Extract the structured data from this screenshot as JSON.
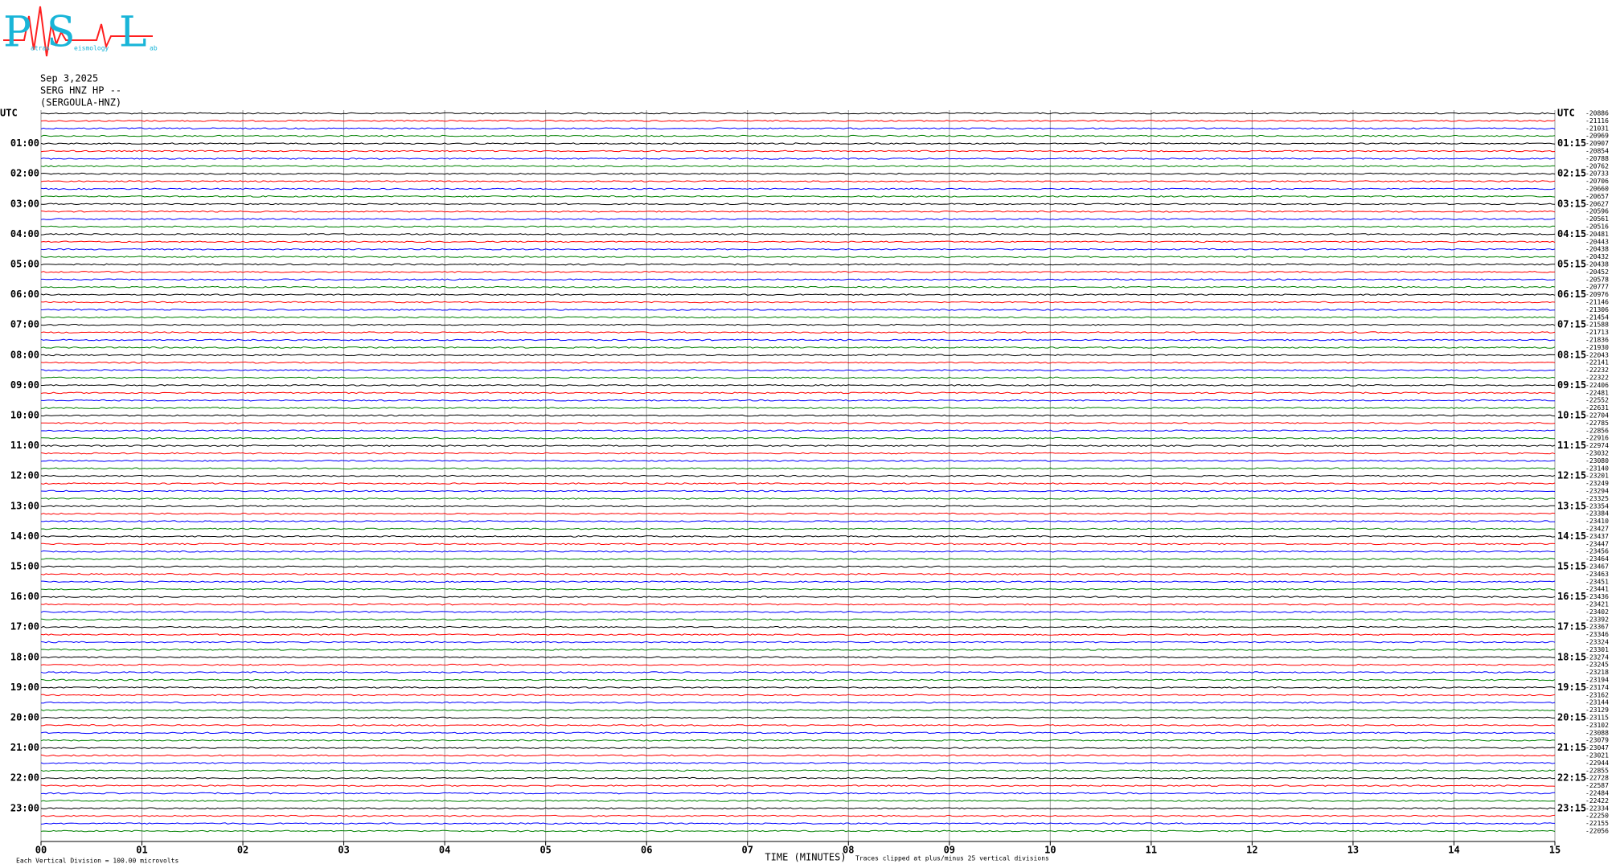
{
  "header": {
    "logo": {
      "letters": [
        "P",
        "S",
        "L"
      ],
      "small": [
        "atras",
        "eismology",
        "ab"
      ]
    },
    "date": "Sep 3,2025",
    "station": "SERG HNZ HP --",
    "station_name": "(SERGOULA-HNZ)"
  },
  "plot": {
    "xlim": [
      0,
      15
    ],
    "xticks": [
      {
        "value": 0,
        "label": "00"
      },
      {
        "value": 1,
        "label": "01"
      },
      {
        "value": 2,
        "label": "02"
      },
      {
        "value": 3,
        "label": "03"
      },
      {
        "value": 4,
        "label": "04"
      },
      {
        "value": 5,
        "label": "05"
      },
      {
        "value": 6,
        "label": "06"
      },
      {
        "value": 7,
        "label": "07"
      },
      {
        "value": 8,
        "label": "08"
      },
      {
        "value": 9,
        "label": "09"
      },
      {
        "value": 10,
        "label": "10"
      },
      {
        "value": 11,
        "label": "11"
      },
      {
        "value": 12,
        "label": "12"
      },
      {
        "value": 13,
        "label": "13"
      },
      {
        "value": 14,
        "label": "14"
      },
      {
        "value": 15,
        "label": "15"
      }
    ],
    "x_label": "TIME (MINUTES)",
    "trace_colors": [
      "#000000",
      "#ff0000",
      "#0000ff",
      "#008000"
    ],
    "left_labels": [
      "UTC",
      "01:00",
      "02:00",
      "03:00",
      "04:00",
      "05:00",
      "06:00",
      "07:00",
      "08:00",
      "09:00",
      "10:00",
      "11:00",
      "12:00",
      "13:00",
      "14:00",
      "15:00",
      "16:00",
      "17:00",
      "18:00",
      "19:00",
      "20:00",
      "21:00",
      "22:00",
      "23:00"
    ],
    "right_labels": [
      "UTC",
      "01:15",
      "02:15",
      "03:15",
      "04:15",
      "05:15",
      "06:15",
      "07:15",
      "08:15",
      "09:15",
      "10:15",
      "11:15",
      "12:15",
      "13:15",
      "14:15",
      "15:15",
      "16:15",
      "17:15",
      "18:15",
      "19:15",
      "20:15",
      "21:15",
      "22:15",
      "23:15"
    ],
    "offsets": [
      "-20886",
      "-21116",
      "-21031",
      "-20969",
      "-20907",
      "-20854",
      "-20788",
      "-20762",
      "-20733",
      "-20706",
      "-20660",
      "-20657",
      "-20627",
      "-20596",
      "-20561",
      "-20516",
      "-20481",
      "-20443",
      "-20438",
      "-20432",
      "-20438",
      "-20452",
      "-20578",
      "-20777",
      "-20976",
      "-21146",
      "-21306",
      "-21454",
      "-21588",
      "-21713",
      "-21836",
      "-21930",
      "-22043",
      "-22141",
      "-22232",
      "-22322",
      "-22406",
      "-22481",
      "-22552",
      "-22631",
      "-22704",
      "-22785",
      "-22856",
      "-22916",
      "-22974",
      "-23032",
      "-23080",
      "-23140",
      "-23201",
      "-23249",
      "-23294",
      "-23325",
      "-23354",
      "-23384",
      "-23410",
      "-23427",
      "-23437",
      "-23447",
      "-23456",
      "-23464",
      "-23467",
      "-23463",
      "-23451",
      "-23441",
      "-23436",
      "-23421",
      "-23402",
      "-23392",
      "-23367",
      "-23346",
      "-23324",
      "-23301",
      "-23274",
      "-23245",
      "-23218",
      "-23194",
      "-23174",
      "-23162",
      "-23144",
      "-23129",
      "-23115",
      "-23102",
      "-23088",
      "-23079",
      "-23047",
      "-23021",
      "-22944",
      "-22855",
      "-22728",
      "-22587",
      "-22484",
      "-22422",
      "-22334",
      "-22250",
      "-22155",
      "-22056"
    ]
  },
  "footer": {
    "scale_note": "Each Vertical Division =  100.00 microvolts",
    "clip_note": "Traces clipped at plus/minus 25 vertical divisions"
  }
}
